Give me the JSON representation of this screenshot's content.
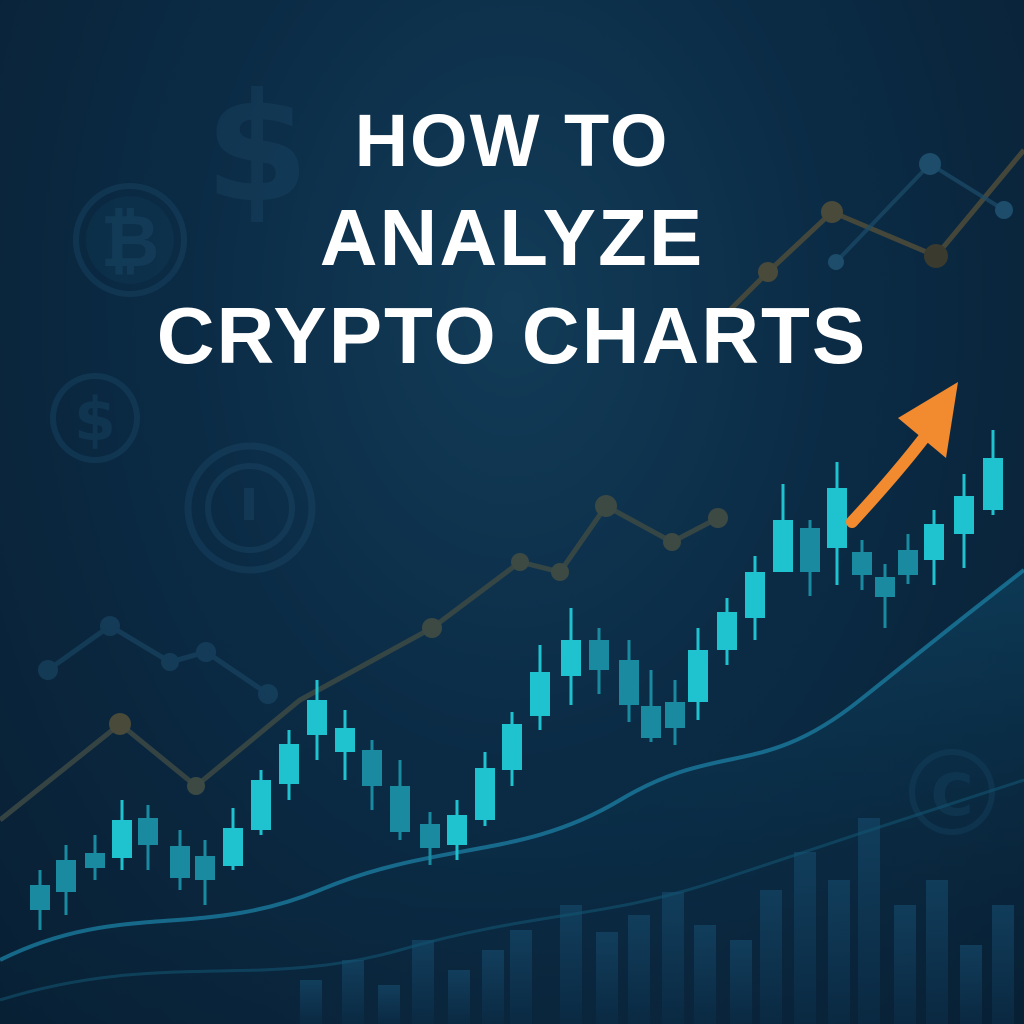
{
  "title": {
    "line1": "HOW TO",
    "line2": "ANALYZE",
    "line3": "CRYPTO CHARTS"
  },
  "icons": [
    "dollar-sign-icon",
    "bitcoin-coin-icon",
    "dollar-coin-icon",
    "generic-coin-icon",
    "cent-coin-icon",
    "trend-up-arrow-icon"
  ],
  "colors": {
    "background": "#0b2b45",
    "candle": "#1fc2cf",
    "candle_dim": "#1a8aa0",
    "line_overlay": "#4a4a3a",
    "arrow": "#f28a30",
    "title": "#ffffff"
  }
}
